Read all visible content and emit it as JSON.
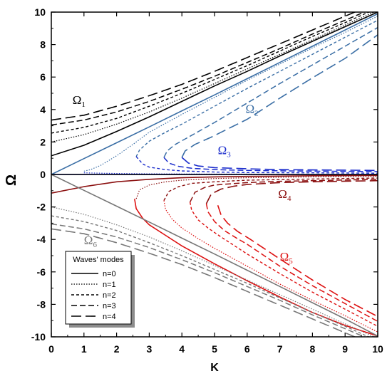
{
  "chart_data": {
    "type": "line",
    "xlabel": "K",
    "ylabel": "Ω",
    "xlim": [
      0,
      10
    ],
    "ylim": [
      -10,
      10
    ],
    "xticks": [
      0,
      1,
      2,
      3,
      4,
      5,
      6,
      7,
      8,
      9,
      10
    ],
    "yticks": [
      -10,
      -8,
      -6,
      -4,
      -2,
      0,
      2,
      4,
      6,
      8,
      10
    ],
    "legend": {
      "title": "Waves' modes",
      "placement": "bottom-left",
      "entries": [
        "n=0",
        "n=1",
        "n=2",
        "n=3",
        "n=4"
      ]
    },
    "annotations": [
      {
        "main": "Ω",
        "sub": "1",
        "color": "#000000"
      },
      {
        "main": "Ω",
        "sub": "2",
        "color": "#3a6ea5"
      },
      {
        "main": "Ω",
        "sub": "3",
        "color": "#1a2ccc"
      },
      {
        "main": "Ω",
        "sub": "4",
        "color": "#8b1010"
      },
      {
        "main": "Ω",
        "sub": "5",
        "color": "#dd1111"
      },
      {
        "main": "Ω",
        "sub": "6",
        "color": "#777777"
      }
    ],
    "colors": {
      "omega1": "#000000",
      "omega2": "#3a6ea5",
      "omega3": "#1a2ccc",
      "omega4": "#8b1010",
      "omega5": "#dd1111",
      "omega6": "#777777",
      "zero_line": "#000000"
    },
    "series": [
      {
        "branch": "omega1",
        "mode": 0,
        "x": [
          0,
          1,
          2,
          3,
          4,
          5,
          6,
          7,
          8,
          9,
          10
        ],
        "y": [
          1.15,
          1.8,
          2.65,
          3.55,
          4.5,
          5.45,
          6.35,
          7.3,
          8.2,
          9.1,
          10.0
        ]
      },
      {
        "branch": "omega1",
        "mode": 1,
        "x": [
          0,
          1,
          2,
          3,
          4,
          5,
          6,
          7,
          8,
          9,
          10
        ],
        "y": [
          2.0,
          2.45,
          3.1,
          3.85,
          4.7,
          5.6,
          6.5,
          7.4,
          8.3,
          9.2,
          10.1
        ]
      },
      {
        "branch": "omega1",
        "mode": 2,
        "x": [
          0,
          1,
          2,
          3,
          4,
          5,
          6,
          7,
          8,
          9,
          10
        ],
        "y": [
          2.55,
          2.9,
          3.45,
          4.2,
          5.0,
          5.85,
          6.7,
          7.6,
          8.5,
          9.35,
          10.25
        ]
      },
      {
        "branch": "omega1",
        "mode": 3,
        "x": [
          0,
          1,
          2,
          3,
          4,
          5,
          6,
          7,
          8,
          9,
          10
        ],
        "y": [
          3.05,
          3.35,
          3.85,
          4.5,
          5.25,
          6.05,
          6.9,
          7.75,
          8.65,
          9.5,
          10.35
        ]
      },
      {
        "branch": "omega1",
        "mode": 4,
        "x": [
          0,
          1,
          2,
          3,
          4,
          5,
          6,
          7,
          8,
          9,
          10
        ],
        "y": [
          3.35,
          3.65,
          4.2,
          4.85,
          5.55,
          6.35,
          7.2,
          8.05,
          8.9,
          9.75,
          10.6
        ]
      },
      {
        "branch": "omega2",
        "mode": 0,
        "x": [
          0,
          1,
          2,
          3,
          4,
          5,
          6,
          7,
          8,
          9,
          10
        ],
        "y": [
          0.0,
          0.98,
          1.95,
          2.93,
          3.92,
          4.9,
          5.9,
          6.9,
          7.9,
          8.9,
          9.9
        ]
      },
      {
        "branch": "omega2",
        "mode": 1,
        "x": [
          1.0,
          1.2,
          1.5,
          2.0,
          2.5,
          3.0,
          4.0,
          5.0,
          6.0,
          7.0,
          8.0,
          9.0,
          10.0
        ],
        "y": [
          0.2,
          0.3,
          0.55,
          1.15,
          1.85,
          2.6,
          3.7,
          4.75,
          5.8,
          6.8,
          7.8,
          8.75,
          9.75
        ]
      },
      {
        "branch": "omega2",
        "mode": 2,
        "x": [
          2.6,
          2.7,
          3.0,
          3.5,
          4.0,
          5.0,
          6.0,
          7.0,
          8.0,
          9.0,
          10.0
        ],
        "y": [
          1.1,
          1.5,
          2.05,
          2.6,
          3.1,
          4.2,
          5.3,
          6.35,
          7.4,
          8.45,
          9.5
        ]
      },
      {
        "branch": "omega2",
        "mode": 3,
        "x": [
          3.45,
          3.55,
          3.8,
          4.2,
          5.0,
          6.0,
          7.0,
          8.0,
          9.0,
          10.0
        ],
        "y": [
          1.05,
          1.45,
          1.85,
          2.3,
          3.2,
          4.4,
          5.6,
          6.75,
          7.9,
          9.05
        ]
      },
      {
        "branch": "omega2",
        "mode": 4,
        "x": [
          4.0,
          4.1,
          4.4,
          4.9,
          5.5,
          6.0,
          7.0,
          8.0,
          9.0,
          10.0
        ],
        "y": [
          1.05,
          1.45,
          1.85,
          2.3,
          2.9,
          3.4,
          4.7,
          5.95,
          7.15,
          8.6
        ]
      },
      {
        "branch": "omega3",
        "mode": 0,
        "x": [
          0,
          1,
          2,
          3,
          4,
          5,
          6,
          7,
          8,
          9,
          10
        ],
        "y": [
          0.0,
          0.0,
          0.0,
          0.0,
          0.0,
          0.0,
          0.0,
          0.0,
          0.0,
          0.0,
          0.0
        ]
      },
      {
        "branch": "omega3",
        "mode": 1,
        "x": [
          1.0,
          1.5,
          2.0,
          3.0,
          4.0,
          5.0,
          6.0,
          8.0,
          10.0
        ],
        "y": [
          0.1,
          0.08,
          0.06,
          0.04,
          0.03,
          0.02,
          0.02,
          0.01,
          0.01
        ]
      },
      {
        "branch": "omega3",
        "mode": 2,
        "x": [
          2.6,
          2.8,
          3.0,
          3.5,
          4.0,
          5.0,
          6.0,
          8.0,
          10.0
        ],
        "y": [
          1.1,
          0.65,
          0.45,
          0.3,
          0.22,
          0.15,
          0.12,
          0.1,
          0.08
        ]
      },
      {
        "branch": "omega3",
        "mode": 3,
        "x": [
          3.45,
          3.6,
          3.9,
          4.3,
          5.0,
          6.0,
          8.0,
          10.0
        ],
        "y": [
          1.05,
          0.7,
          0.5,
          0.38,
          0.3,
          0.25,
          0.2,
          0.18
        ]
      },
      {
        "branch": "omega3",
        "mode": 4,
        "x": [
          4.0,
          4.2,
          4.5,
          5.0,
          6.0,
          7.0,
          8.0,
          10.0
        ],
        "y": [
          1.05,
          0.7,
          0.52,
          0.42,
          0.35,
          0.3,
          0.28,
          0.25
        ]
      },
      {
        "branch": "omega4",
        "mode": 0,
        "x": [
          0,
          1,
          2,
          3,
          4,
          5,
          6,
          7,
          8,
          9,
          10
        ],
        "y": [
          -1.15,
          -0.75,
          -0.45,
          -0.3,
          -0.2,
          -0.15,
          -0.12,
          -0.1,
          -0.08,
          -0.07,
          -0.06
        ]
      },
      {
        "branch": "omega4",
        "mode": 1,
        "x": [
          2.6,
          2.7,
          3.0,
          3.5,
          4.0,
          5.0,
          6.0,
          8.0,
          10.0
        ],
        "y": [
          -1.5,
          -0.95,
          -0.65,
          -0.45,
          -0.35,
          -0.25,
          -0.2,
          -0.15,
          -0.12
        ]
      },
      {
        "branch": "omega4",
        "mode": 2,
        "x": [
          3.45,
          3.6,
          3.9,
          4.3,
          5.0,
          6.0,
          8.0,
          10.0
        ],
        "y": [
          -1.6,
          -1.05,
          -0.75,
          -0.55,
          -0.45,
          -0.35,
          -0.28,
          -0.22
        ]
      },
      {
        "branch": "omega4",
        "mode": 3,
        "x": [
          4.25,
          4.4,
          4.7,
          5.0,
          6.0,
          7.0,
          8.0,
          10.0
        ],
        "y": [
          -1.7,
          -1.1,
          -0.8,
          -0.65,
          -0.5,
          -0.42,
          -0.38,
          -0.3
        ]
      },
      {
        "branch": "omega4",
        "mode": 4,
        "x": [
          4.75,
          4.9,
          5.2,
          5.6,
          6.0,
          7.0,
          8.0,
          10.0
        ],
        "y": [
          -1.8,
          -1.2,
          -0.9,
          -0.72,
          -0.62,
          -0.5,
          -0.45,
          -0.38
        ]
      },
      {
        "branch": "omega5",
        "mode": 0,
        "x": [
          2.55,
          2.6,
          2.8,
          3.0,
          3.5,
          4.0,
          5.0,
          6.0,
          7.0,
          8.0,
          9.0,
          10.0
        ],
        "y": [
          -1.5,
          -2.1,
          -2.7,
          -3.1,
          -3.75,
          -4.4,
          -5.5,
          -6.55,
          -7.55,
          -8.5,
          -9.3,
          -9.95
        ]
      },
      {
        "branch": "omega5",
        "mode": 1,
        "x": [
          3.45,
          3.5,
          3.7,
          4.0,
          4.5,
          5.0,
          6.0,
          7.0,
          8.0,
          9.0,
          10.0
        ],
        "y": [
          -1.6,
          -2.15,
          -2.75,
          -3.3,
          -3.95,
          -4.55,
          -5.65,
          -6.75,
          -7.75,
          -8.7,
          -9.7
        ]
      },
      {
        "branch": "omega5",
        "mode": 2,
        "x": [
          4.25,
          4.3,
          4.5,
          4.8,
          5.2,
          6.0,
          7.0,
          8.0,
          9.0,
          10.0
        ],
        "y": [
          -1.7,
          -2.2,
          -2.8,
          -3.3,
          -3.85,
          -4.9,
          -6.1,
          -7.25,
          -8.3,
          -9.35
        ]
      },
      {
        "branch": "omega5",
        "mode": 3,
        "x": [
          4.75,
          4.8,
          5.0,
          5.3,
          5.7,
          6.0,
          7.0,
          8.0,
          9.0,
          10.0
        ],
        "y": [
          -1.8,
          -2.3,
          -2.9,
          -3.45,
          -3.95,
          -4.3,
          -5.65,
          -6.85,
          -7.95,
          -9.05
        ]
      },
      {
        "branch": "omega5",
        "mode": 4,
        "x": [
          5.1,
          5.2,
          5.4,
          5.7,
          6.1,
          7.0,
          8.0,
          9.0,
          10.0
        ],
        "y": [
          -1.9,
          -2.5,
          -3.0,
          -3.5,
          -4.0,
          -5.2,
          -6.5,
          -7.7,
          -8.75
        ]
      },
      {
        "branch": "omega6",
        "mode": 0,
        "x": [
          0,
          1,
          2,
          3,
          4,
          5,
          6,
          7,
          8,
          9,
          10
        ],
        "y": [
          0.0,
          -0.98,
          -1.95,
          -2.93,
          -3.92,
          -4.9,
          -5.9,
          -6.9,
          -7.9,
          -8.9,
          -9.95
        ]
      },
      {
        "branch": "omega6",
        "mode": 1,
        "x": [
          0,
          1,
          2,
          3,
          4,
          5,
          6,
          7,
          8,
          9,
          10
        ],
        "y": [
          -2.0,
          -2.45,
          -3.1,
          -3.85,
          -4.7,
          -5.6,
          -6.5,
          -7.4,
          -8.3,
          -9.2,
          -10.1
        ]
      },
      {
        "branch": "omega6",
        "mode": 2,
        "x": [
          0,
          1,
          2,
          3,
          4,
          5,
          6,
          7,
          8,
          9,
          10
        ],
        "y": [
          -2.55,
          -2.9,
          -3.45,
          -4.2,
          -5.0,
          -5.85,
          -6.7,
          -7.6,
          -8.5,
          -9.35,
          -10.25
        ]
      },
      {
        "branch": "omega6",
        "mode": 3,
        "x": [
          0,
          1,
          2,
          3,
          4,
          5,
          6,
          7,
          8,
          9,
          10
        ],
        "y": [
          -3.05,
          -3.35,
          -3.85,
          -4.5,
          -5.25,
          -6.05,
          -6.9,
          -7.75,
          -8.65,
          -9.5,
          -10.35
        ]
      },
      {
        "branch": "omega6",
        "mode": 4,
        "x": [
          0,
          1,
          2,
          3,
          4,
          5,
          6,
          7,
          8,
          9,
          10
        ],
        "y": [
          -3.35,
          -3.65,
          -4.2,
          -4.85,
          -5.55,
          -6.35,
          -7.2,
          -8.05,
          -8.9,
          -9.75,
          -10.6
        ]
      }
    ]
  }
}
